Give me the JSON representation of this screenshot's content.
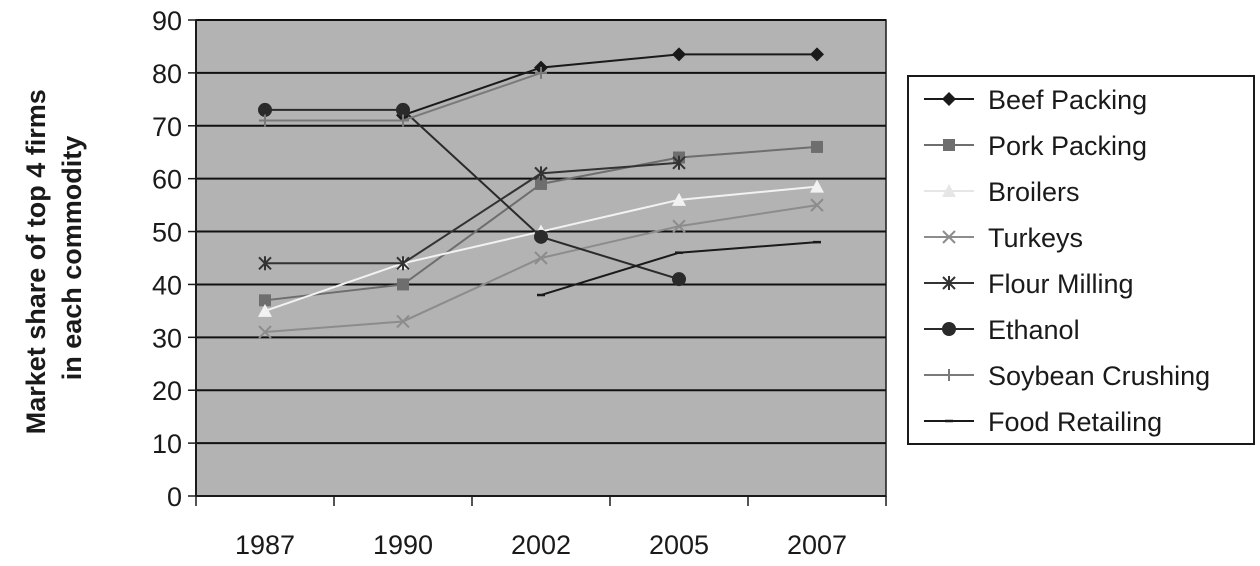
{
  "chart_data": {
    "type": "line",
    "title": "",
    "xlabel": "",
    "ylabel_lines": [
      "Market share of top 4 firms",
      "in each commodity"
    ],
    "categories": [
      "1987",
      "1990",
      "2002",
      "2005",
      "2007"
    ],
    "ylim": [
      0,
      90
    ],
    "yticks": [
      0,
      10,
      20,
      30,
      40,
      50,
      60,
      70,
      80,
      90
    ],
    "grid": true,
    "plot_background": "#b3b3b3",
    "legend_position": "right",
    "series": [
      {
        "name": "Beef Packing",
        "values": [
          null,
          72,
          81,
          83.5,
          83.5
        ],
        "color": "#1a1a1a",
        "marker": "diamond"
      },
      {
        "name": "Pork Packing",
        "values": [
          37,
          40,
          59,
          64,
          66
        ],
        "color": "#6e6e6e",
        "marker": "square"
      },
      {
        "name": "Broilers",
        "values": [
          35,
          44,
          50,
          56,
          58.5
        ],
        "color": "#f2f2f2",
        "marker": "triangle"
      },
      {
        "name": "Turkeys",
        "values": [
          31,
          33,
          45,
          51,
          55
        ],
        "color": "#8c8c8c",
        "marker": "x"
      },
      {
        "name": "Flour Milling",
        "values": [
          44,
          44,
          61,
          63,
          null
        ],
        "color": "#333333",
        "marker": "star"
      },
      {
        "name": "Ethanol",
        "values": [
          73,
          73,
          49,
          41,
          null
        ],
        "color": "#2a2a2a",
        "marker": "circle"
      },
      {
        "name": "Soybean Crushing",
        "values": [
          71,
          71,
          80,
          null,
          null
        ],
        "color": "#7a7a7a",
        "marker": "plus"
      },
      {
        "name": "Food Retailing",
        "values": [
          null,
          null,
          38,
          46,
          48
        ],
        "color": "#1a1a1a",
        "marker": "dash"
      }
    ]
  }
}
